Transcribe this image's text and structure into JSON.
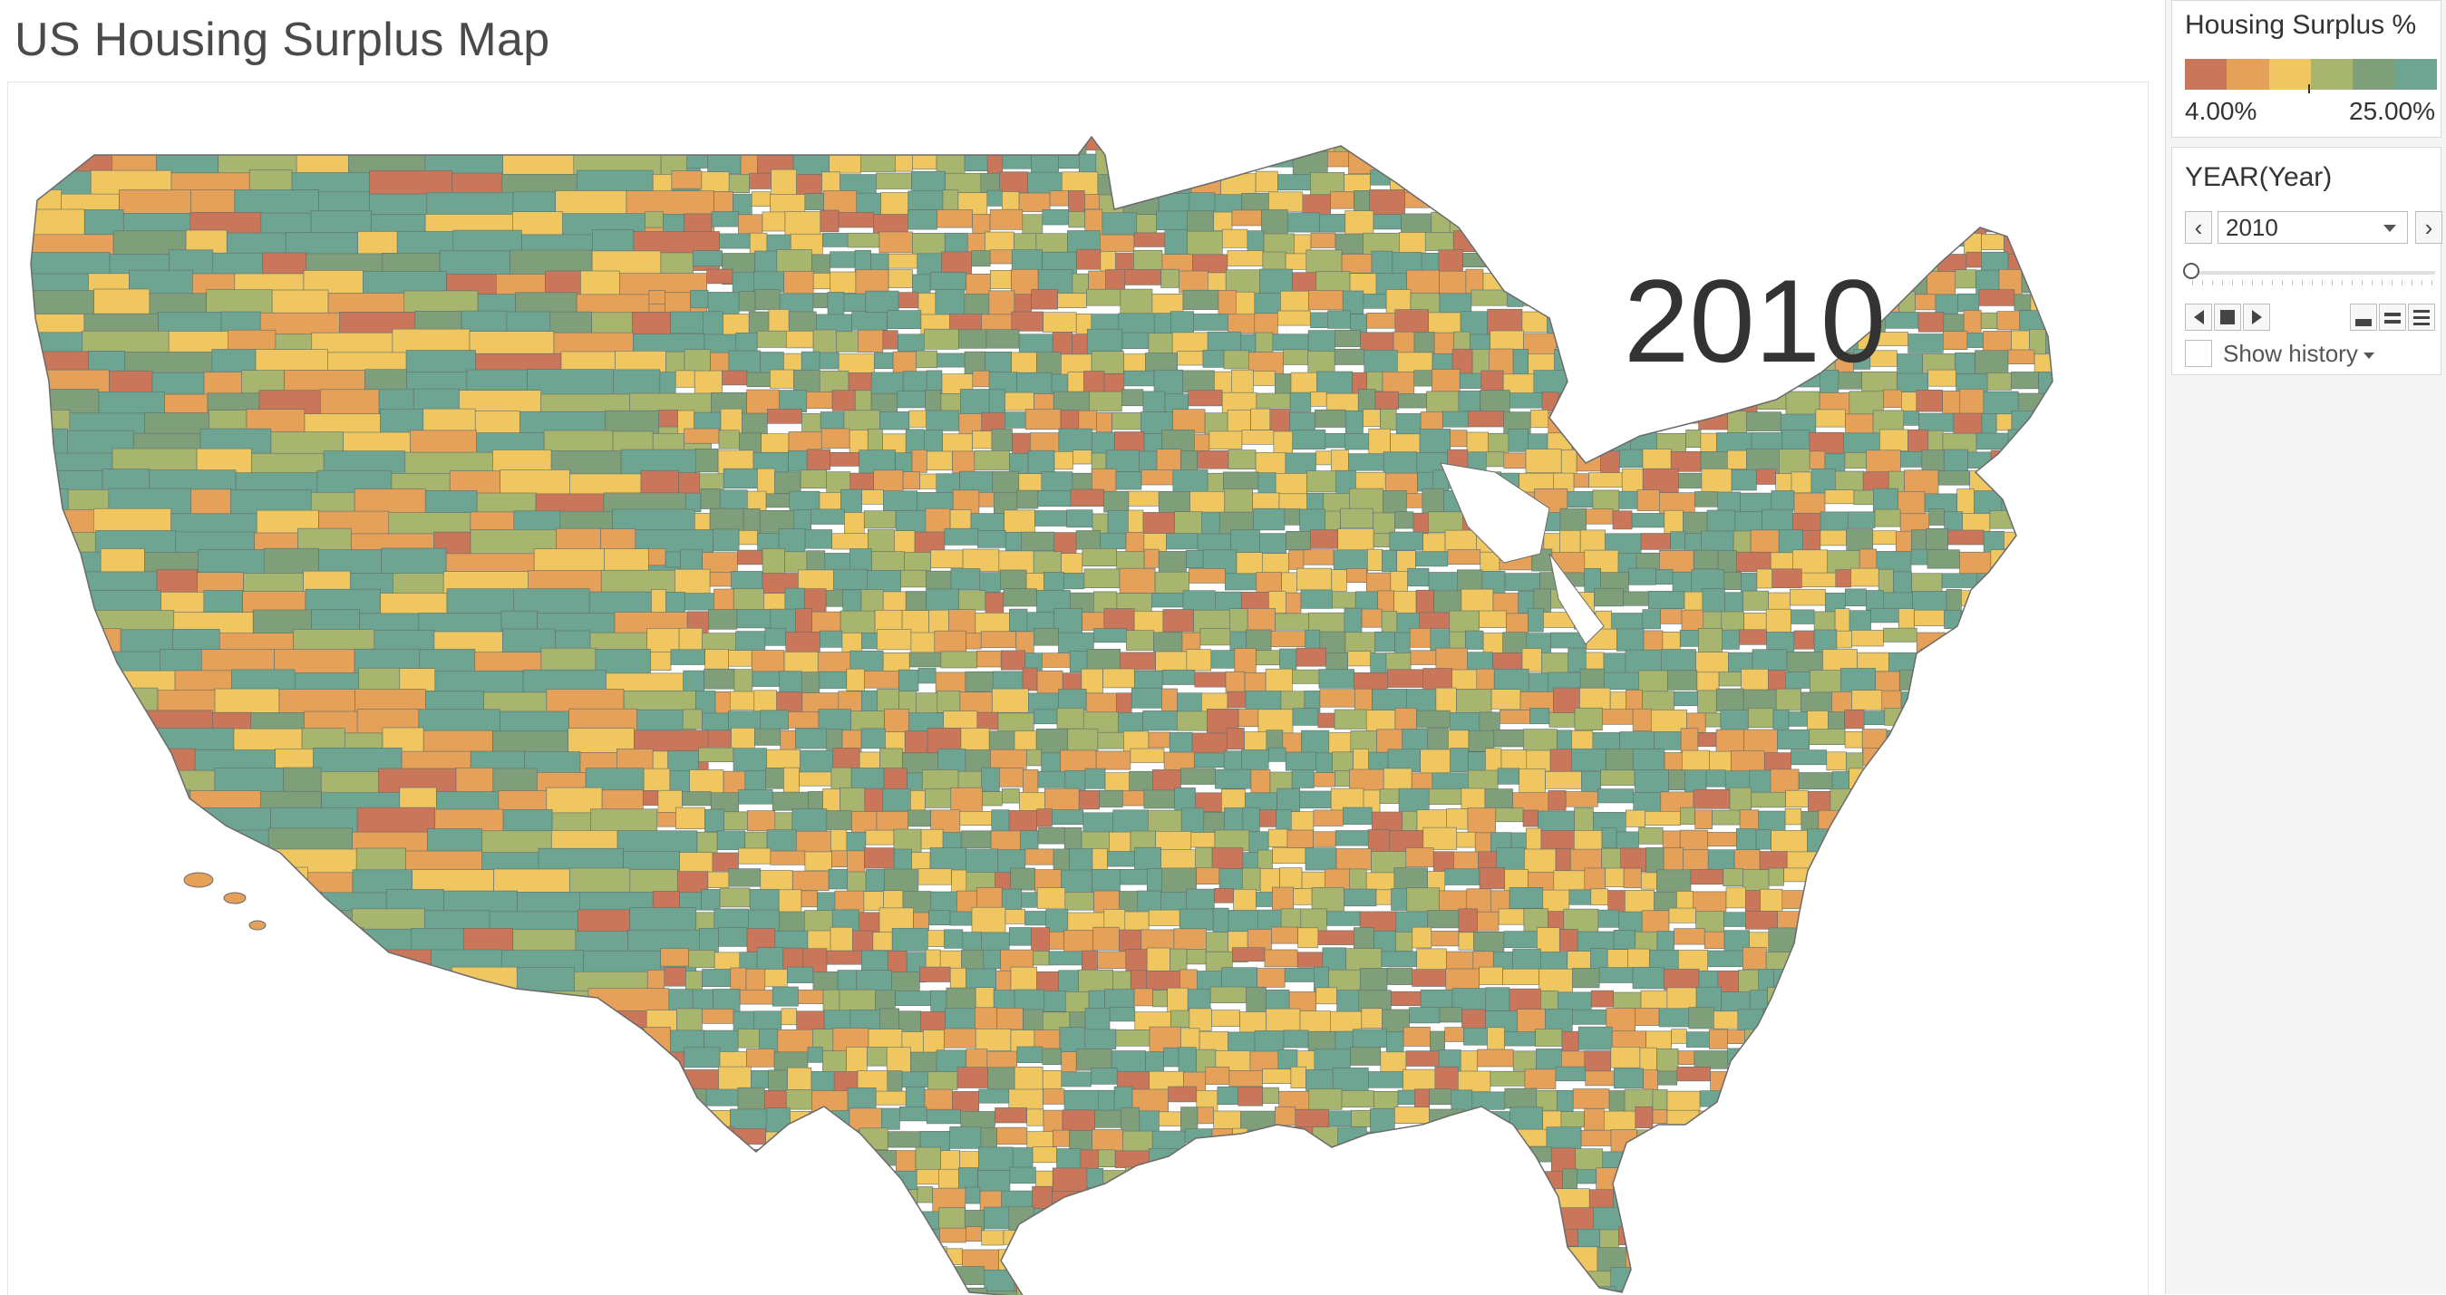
{
  "page": {
    "title": "US Housing Surplus Map"
  },
  "map": {
    "year_label": "2010",
    "metric": "Housing Surplus %",
    "palette": [
      "#c9765a",
      "#e5a05a",
      "#efc660",
      "#a7b56e",
      "#7f9f7a",
      "#6ea592"
    ]
  },
  "legend": {
    "title": "Housing Surplus %",
    "min_label": "4.00%",
    "max_label": "25.00%",
    "colors": [
      "#c9765a",
      "#e5a05a",
      "#efc660",
      "#a7b56e",
      "#7f9f7a",
      "#6ea592"
    ]
  },
  "year_filter": {
    "title": "YEAR(Year)",
    "selected": "2010",
    "show_history_label": "Show history",
    "prev_icon": "chevron-left-icon",
    "next_icon": "chevron-right-icon"
  }
}
